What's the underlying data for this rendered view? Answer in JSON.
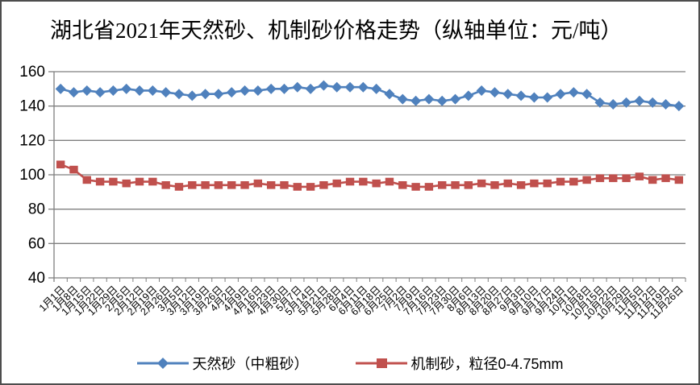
{
  "window": {
    "background_color": "#ffffff",
    "frame_border_color": "#4d4d4d"
  },
  "chart_data": {
    "type": "line",
    "title": "湖北省2021年天然砂、机制砂价格走势（纵轴单位：元/吨）",
    "y_unit": "元/吨",
    "ylim": [
      40,
      160
    ],
    "yticks": [
      40,
      60,
      80,
      100,
      120,
      140,
      160
    ],
    "grid": true,
    "legend_position": "bottom",
    "axis_color": "#7f7f7f",
    "text_color": "#000000",
    "categories": [
      "1月1日",
      "1月8日",
      "1月15日",
      "1月22日",
      "1月29日",
      "2月5日",
      "2月12日",
      "2月19日",
      "2月26日",
      "3月5日",
      "3月12日",
      "3月19日",
      "3月26日",
      "4月2日",
      "4月9日",
      "4月16日",
      "4月23日",
      "4月30日",
      "5月7日",
      "5月14日",
      "5月21日",
      "5月28日",
      "6月4日",
      "6月11日",
      "6月18日",
      "6月25日",
      "7月2日",
      "7月9日",
      "7月16日",
      "7月23日",
      "7月30日",
      "8月6日",
      "8月13日",
      "8月20日",
      "8月27日",
      "9月3日",
      "9月10日",
      "9月17日",
      "9月24日",
      "10月1日",
      "10月8日",
      "10月15日",
      "10月22日",
      "10月29日",
      "11月5日",
      "11月12日",
      "11月19日",
      "11月26日"
    ],
    "series": [
      {
        "name": "天然砂（中粗砂）",
        "color": "#4F81BD",
        "marker": "diamond",
        "values": [
          150,
          148,
          149,
          148,
          149,
          150,
          149,
          149,
          148,
          147,
          146,
          147,
          147,
          148,
          149,
          149,
          150,
          150,
          151,
          150,
          152,
          151,
          151,
          151,
          150,
          147,
          144,
          143,
          144,
          143,
          144,
          146,
          149,
          148,
          147,
          146,
          145,
          145,
          147,
          148,
          147,
          142,
          141,
          142,
          143,
          142,
          141,
          140
        ]
      },
      {
        "name": "机制砂，粒径0-4.75mm",
        "color": "#C0504D",
        "marker": "square",
        "values": [
          106,
          103,
          97,
          96,
          96,
          95,
          96,
          96,
          94,
          93,
          94,
          94,
          94,
          94,
          94,
          95,
          94,
          94,
          93,
          93,
          94,
          95,
          96,
          96,
          95,
          96,
          94,
          93,
          93,
          94,
          94,
          94,
          95,
          94,
          95,
          94,
          95,
          95,
          96,
          96,
          97,
          98,
          98,
          98,
          99,
          97,
          98,
          97
        ]
      }
    ]
  }
}
